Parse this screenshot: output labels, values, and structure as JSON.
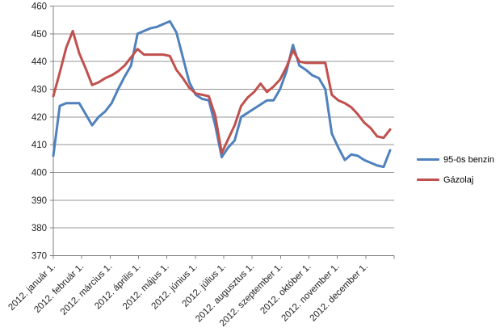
{
  "chart_data": {
    "type": "line",
    "title": "",
    "x_axis": {
      "unit": "weekly data points, 2012",
      "month_labels": [
        "2012. január 1.",
        "2012. február 1.",
        "2012. március 1.",
        "2012. április 1.",
        "2012. május 1.",
        "2012. június 1.",
        "2012. július 1.",
        "2012. augusztus 1.",
        "2012. szeptember 1.",
        "2012. október 1.",
        "2012. november 1.",
        "2012. december 1."
      ]
    },
    "y_axis": {
      "min": 370,
      "max": 460,
      "step": 10,
      "tick_labels": [
        "370",
        "380",
        "390",
        "400",
        "410",
        "420",
        "430",
        "440",
        "450",
        "460"
      ]
    },
    "grid": "horizontal",
    "legend_position": "right",
    "series": [
      {
        "name": "95-ös benzin",
        "color": "#4F81BD",
        "values": [
          406,
          424,
          425,
          425,
          425,
          421,
          417,
          420,
          422,
          425,
          430,
          434.5,
          438.5,
          450,
          451,
          452,
          452.5,
          453.5,
          454.5,
          450.5,
          441.5,
          432.5,
          428,
          426.5,
          426,
          417,
          405.5,
          409,
          411.5,
          420,
          421.5,
          423,
          424.5,
          426,
          426,
          430,
          436.5,
          446,
          438.5,
          437,
          435,
          434,
          430,
          414,
          409,
          404.5,
          406.5,
          406,
          404.5,
          403.5,
          402.5,
          402,
          408
        ]
      },
      {
        "name": "Gázolaj",
        "color": "#C0504D",
        "values": [
          427.5,
          436,
          445,
          451,
          443,
          437.5,
          431.5,
          432.5,
          434,
          435,
          436.5,
          438.5,
          441.5,
          444.5,
          442.5,
          442.5,
          442.5,
          442.5,
          442,
          437,
          434,
          430.5,
          428.5,
          428,
          427.5,
          420.5,
          407,
          412,
          417,
          424,
          427,
          429,
          432,
          429,
          431,
          433.5,
          438,
          444,
          440,
          439.5,
          439.5,
          439.5,
          439.5,
          428,
          426,
          425,
          423.5,
          421,
          418,
          416,
          413,
          412.5,
          415.5
        ]
      }
    ]
  },
  "legend": {
    "items": [
      {
        "label": "95-ös benzin",
        "color": "#4F81BD"
      },
      {
        "label": "Gázolaj",
        "color": "#C0504D"
      }
    ]
  },
  "colors": {
    "background": "#FFFFFF",
    "gridline": "#969696",
    "axis": "#808080",
    "label_text": "#1f1f1f",
    "benzin_line": "#4F81BD",
    "gazolaj_line": "#C0504D"
  }
}
